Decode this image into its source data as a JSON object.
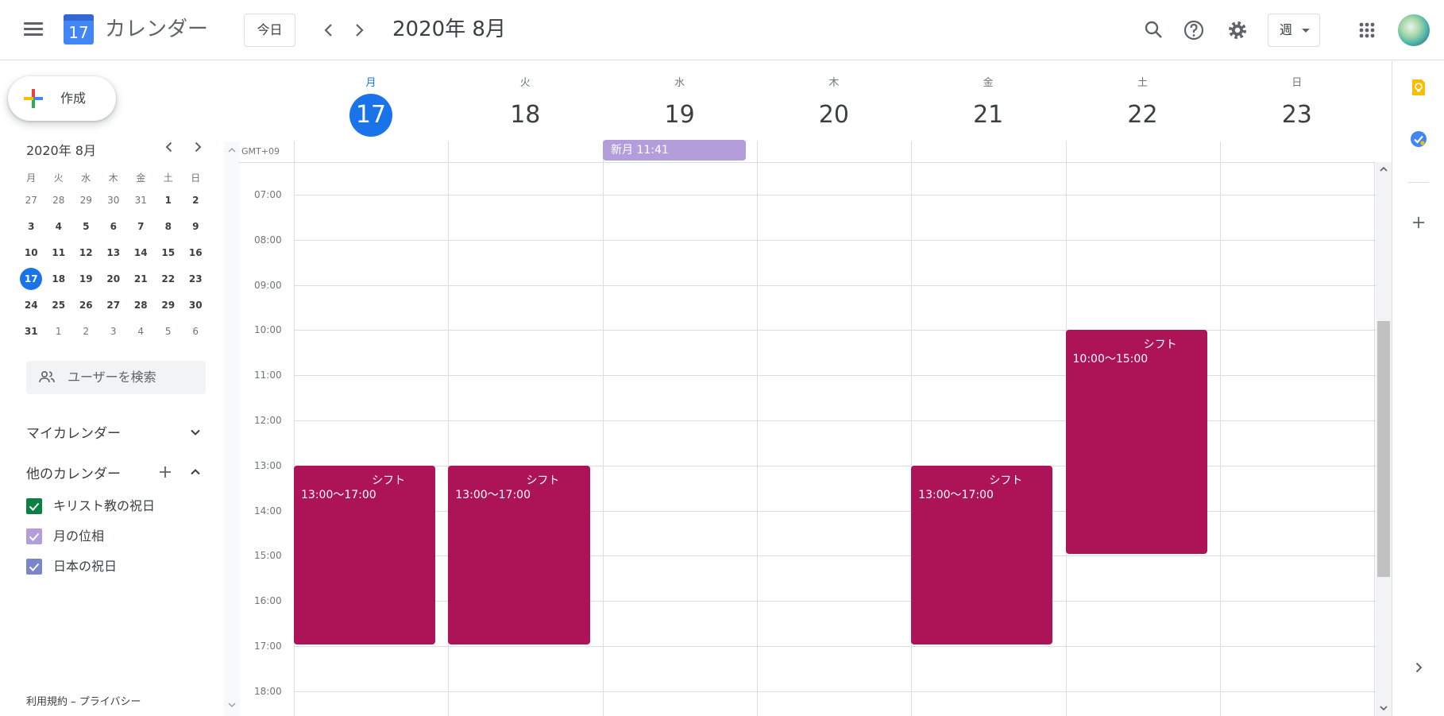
{
  "header": {
    "app_title": "カレンダー",
    "logo_day": "17",
    "today_label": "今日",
    "month_title": "2020年 8月",
    "view_label": "週"
  },
  "sidebar": {
    "create_label": "作成",
    "mini_calendar": {
      "title": "2020年 8月",
      "weekdays": [
        "月",
        "火",
        "水",
        "木",
        "金",
        "土",
        "日"
      ],
      "weeks": [
        [
          "27",
          "28",
          "29",
          "30",
          "31",
          "1",
          "2"
        ],
        [
          "3",
          "4",
          "5",
          "6",
          "7",
          "8",
          "9"
        ],
        [
          "10",
          "11",
          "12",
          "13",
          "14",
          "15",
          "16"
        ],
        [
          "17",
          "18",
          "19",
          "20",
          "21",
          "22",
          "23"
        ],
        [
          "24",
          "25",
          "26",
          "27",
          "28",
          "29",
          "30"
        ],
        [
          "31",
          "1",
          "2",
          "3",
          "4",
          "5",
          "6"
        ]
      ],
      "today": "17"
    },
    "search_users_placeholder": "ユーザーを検索",
    "my_calendars_title": "マイカレンダー",
    "other_calendars_title": "他のカレンダー",
    "other_calendars": [
      {
        "name": "キリスト教の祝日",
        "color": "#0b8043"
      },
      {
        "name": "月の位相",
        "color": "#b39ddb"
      },
      {
        "name": "日本の祝日",
        "color": "#7986cb"
      }
    ],
    "footer": "利用規約 – プライバシー"
  },
  "week": {
    "timezone": "GMT+09",
    "days": [
      {
        "dow": "月",
        "date": "17",
        "today": true
      },
      {
        "dow": "火",
        "date": "18"
      },
      {
        "dow": "水",
        "date": "19"
      },
      {
        "dow": "木",
        "date": "20"
      },
      {
        "dow": "金",
        "date": "21"
      },
      {
        "dow": "土",
        "date": "22"
      },
      {
        "dow": "日",
        "date": "23"
      }
    ],
    "hours": [
      "07:00",
      "08:00",
      "09:00",
      "10:00",
      "11:00",
      "12:00",
      "13:00",
      "14:00",
      "15:00",
      "16:00",
      "17:00",
      "18:00"
    ],
    "allday_event": {
      "title": "新月 11:41",
      "color": "#b39ddb"
    },
    "events": [
      {
        "title": "シフト",
        "time": "13:00～17:00",
        "color": "#ad1457"
      },
      {
        "title": "シフト",
        "time": "13:00～17:00",
        "color": "#ad1457"
      },
      {
        "title": "シフト",
        "time": "13:00～17:00",
        "color": "#ad1457"
      },
      {
        "title": "シフト",
        "time": "10:00～15:00",
        "color": "#ad1457"
      }
    ]
  },
  "colors": {
    "accent": "#1a73e8",
    "event": "#ad1457"
  }
}
